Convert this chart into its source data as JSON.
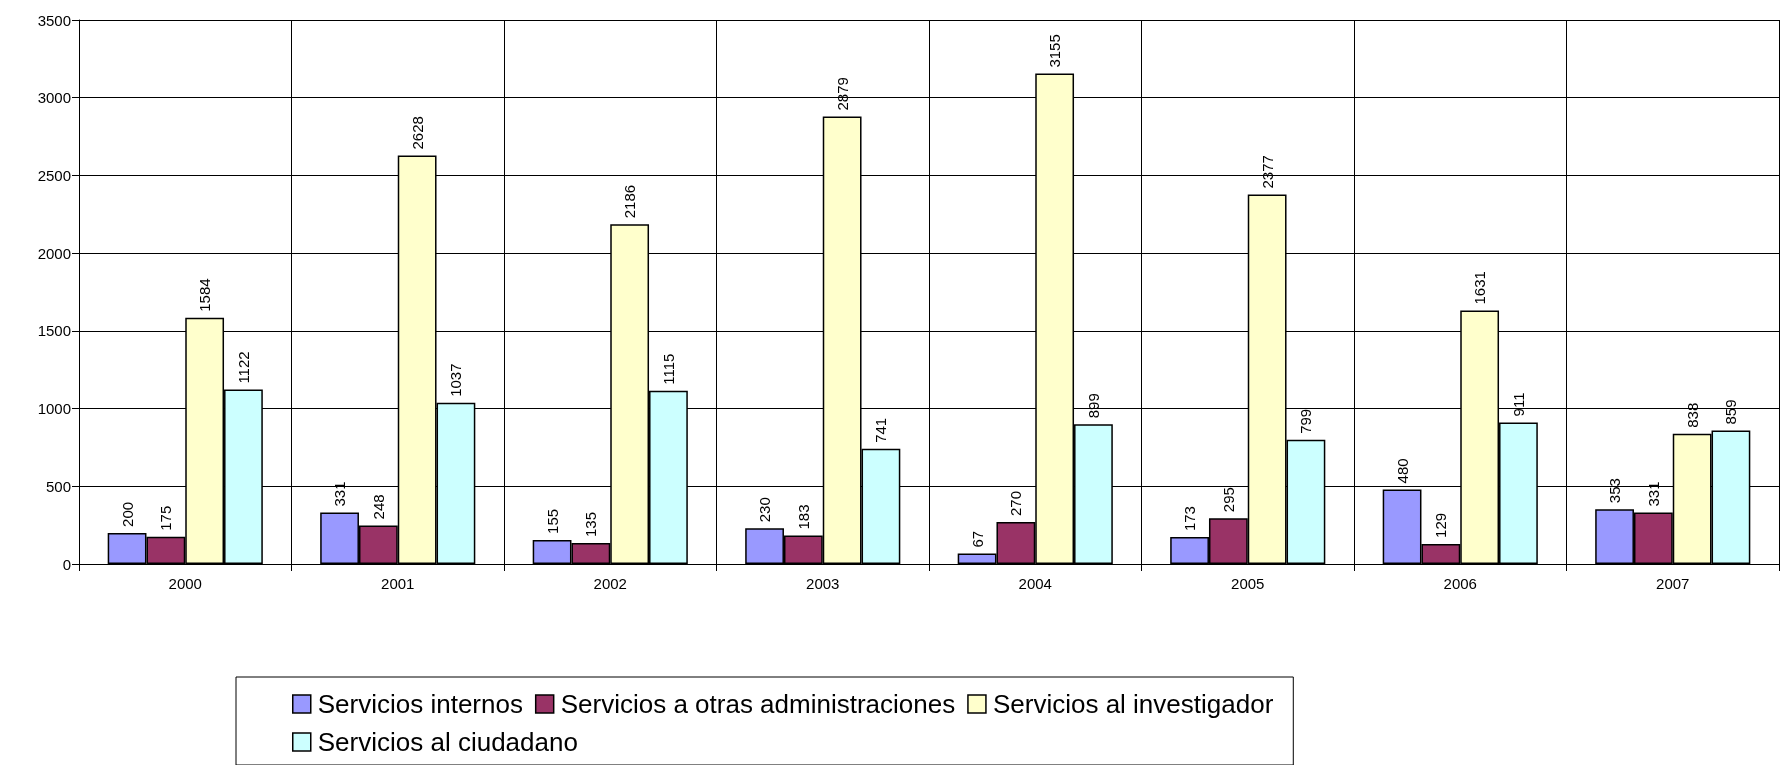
{
  "chart_data": {
    "type": "bar",
    "categories": [
      "2000",
      "2001",
      "2002",
      "2003",
      "2004",
      "2005",
      "2006",
      "2007"
    ],
    "series": [
      {
        "name": "Servicios internos",
        "color": "#9999ff",
        "values": [
          200,
          331,
          155,
          230,
          67,
          173,
          480,
          353
        ]
      },
      {
        "name": "Servicios a otras administraciones",
        "color": "#993366",
        "values": [
          175,
          248,
          135,
          183,
          270,
          295,
          129,
          331
        ]
      },
      {
        "name": "Servicios al investigador",
        "color": "#ffffcc",
        "values": [
          1584,
          2628,
          2186,
          2879,
          3155,
          2377,
          1631,
          838
        ]
      },
      {
        "name": "Servicios al ciudadano",
        "color": "#ccffff",
        "values": [
          1122,
          1037,
          1115,
          741,
          899,
          799,
          911,
          859
        ]
      }
    ],
    "ylim": [
      0,
      3500
    ],
    "yticks": [
      0,
      500,
      1000,
      1500,
      2000,
      2500,
      3000,
      3500
    ],
    "grid": true,
    "legend": "bottom",
    "data_labels": true
  }
}
